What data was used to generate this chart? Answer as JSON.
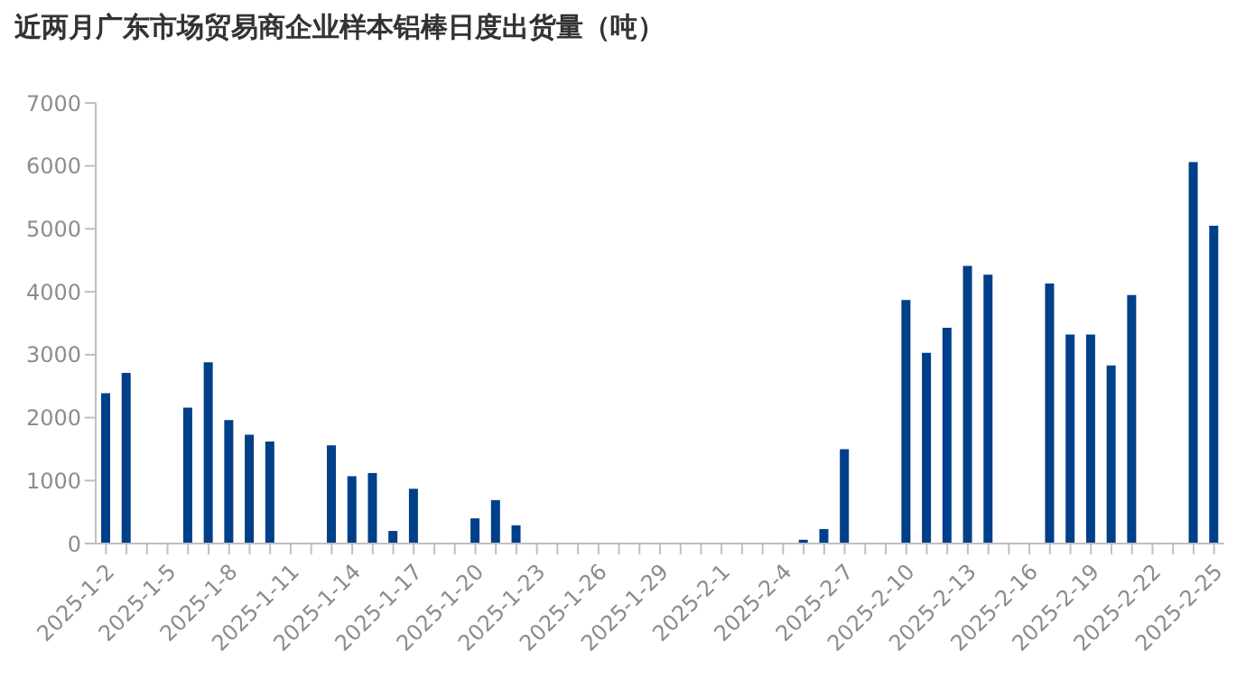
{
  "chart_data": {
    "type": "bar",
    "title": "近两月广东市场贸易商企业样本铝棒日度出货量（吨）",
    "categories": [
      "2025-1-2",
      null,
      null,
      "2025-1-5",
      null,
      null,
      "2025-1-8",
      null,
      null,
      "2025-1-11",
      null,
      null,
      "2025-1-14",
      null,
      null,
      "2025-1-17",
      null,
      null,
      "2025-1-20",
      null,
      null,
      "2025-1-23",
      null,
      null,
      "2025-1-26",
      null,
      null,
      "2025-1-29",
      null,
      null,
      "2025-2-1",
      null,
      null,
      "2025-2-4",
      null,
      null,
      "2025-2-7",
      null,
      null,
      "2025-2-10",
      null,
      null,
      "2025-2-13",
      null,
      null,
      "2025-2-16",
      null,
      null,
      "2025-2-19",
      null,
      null,
      "2025-2-22",
      null,
      null,
      "2025-2-25"
    ],
    "values": [
      2390,
      2710,
      null,
      null,
      2160,
      2880,
      1960,
      1730,
      1620,
      null,
      null,
      1560,
      1070,
      1120,
      200,
      870,
      null,
      null,
      400,
      690,
      290,
      null,
      null,
      null,
      null,
      null,
      null,
      null,
      null,
      null,
      null,
      null,
      null,
      null,
      60,
      230,
      1500,
      null,
      null,
      3870,
      3030,
      3430,
      4410,
      4270,
      null,
      null,
      4130,
      3320,
      3320,
      2830,
      3950,
      null,
      null,
      6060,
      5050
    ],
    "color": "#003f8a",
    "ylim": [
      0,
      7000
    ],
    "yticks": [
      0,
      1000,
      2000,
      3000,
      4000,
      5000,
      6000,
      7000
    ],
    "grid": false,
    "legend": false
  }
}
